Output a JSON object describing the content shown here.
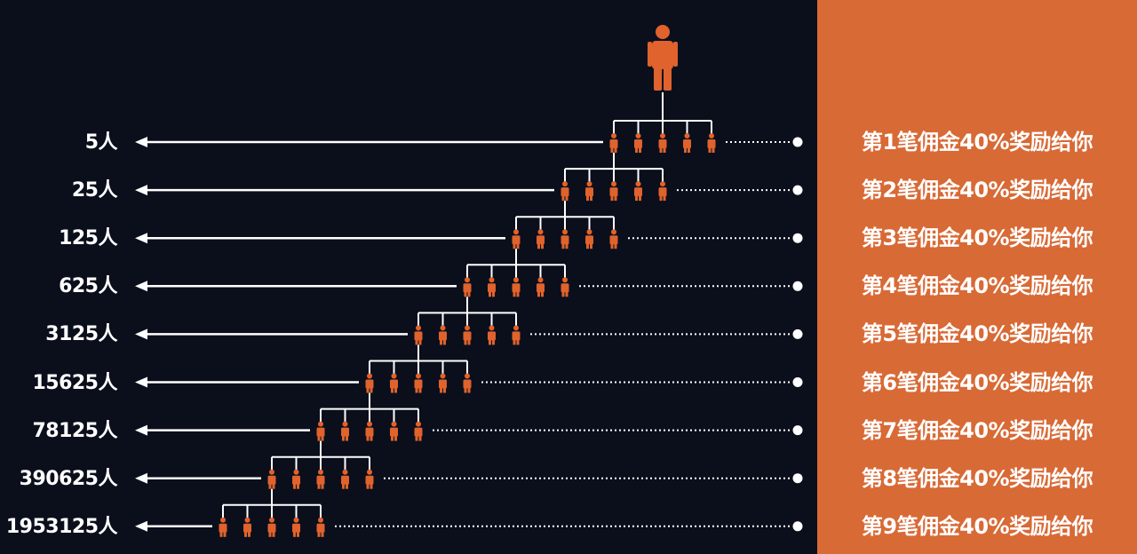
{
  "colors": {
    "background": "#0b0f1c",
    "panel": "#d86a36",
    "figure": "#e0622c",
    "line": "#ffffff"
  },
  "icons": {
    "person": "person-icon",
    "arrow": "arrow-left-icon",
    "endpoint": "dot-icon"
  },
  "levels": [
    {
      "count": "5人",
      "reward": "第1笔佣金40%奖励给你"
    },
    {
      "count": "25人",
      "reward": "第2笔佣金40%奖励给你"
    },
    {
      "count": "125人",
      "reward": "第3笔佣金40%奖励给你"
    },
    {
      "count": "625人",
      "reward": "第4笔佣金40%奖励给你"
    },
    {
      "count": "3125人",
      "reward": "第5笔佣金40%奖励给你"
    },
    {
      "count": "15625人",
      "reward": "第6笔佣金40%奖励给你"
    },
    {
      "count": "78125人",
      "reward": "第7笔佣金40%奖励给你"
    },
    {
      "count": "390625人",
      "reward": "第8笔佣金40%奖励给你"
    },
    {
      "count": "1953125人",
      "reward": "第9笔佣金40%奖励给你"
    }
  ]
}
